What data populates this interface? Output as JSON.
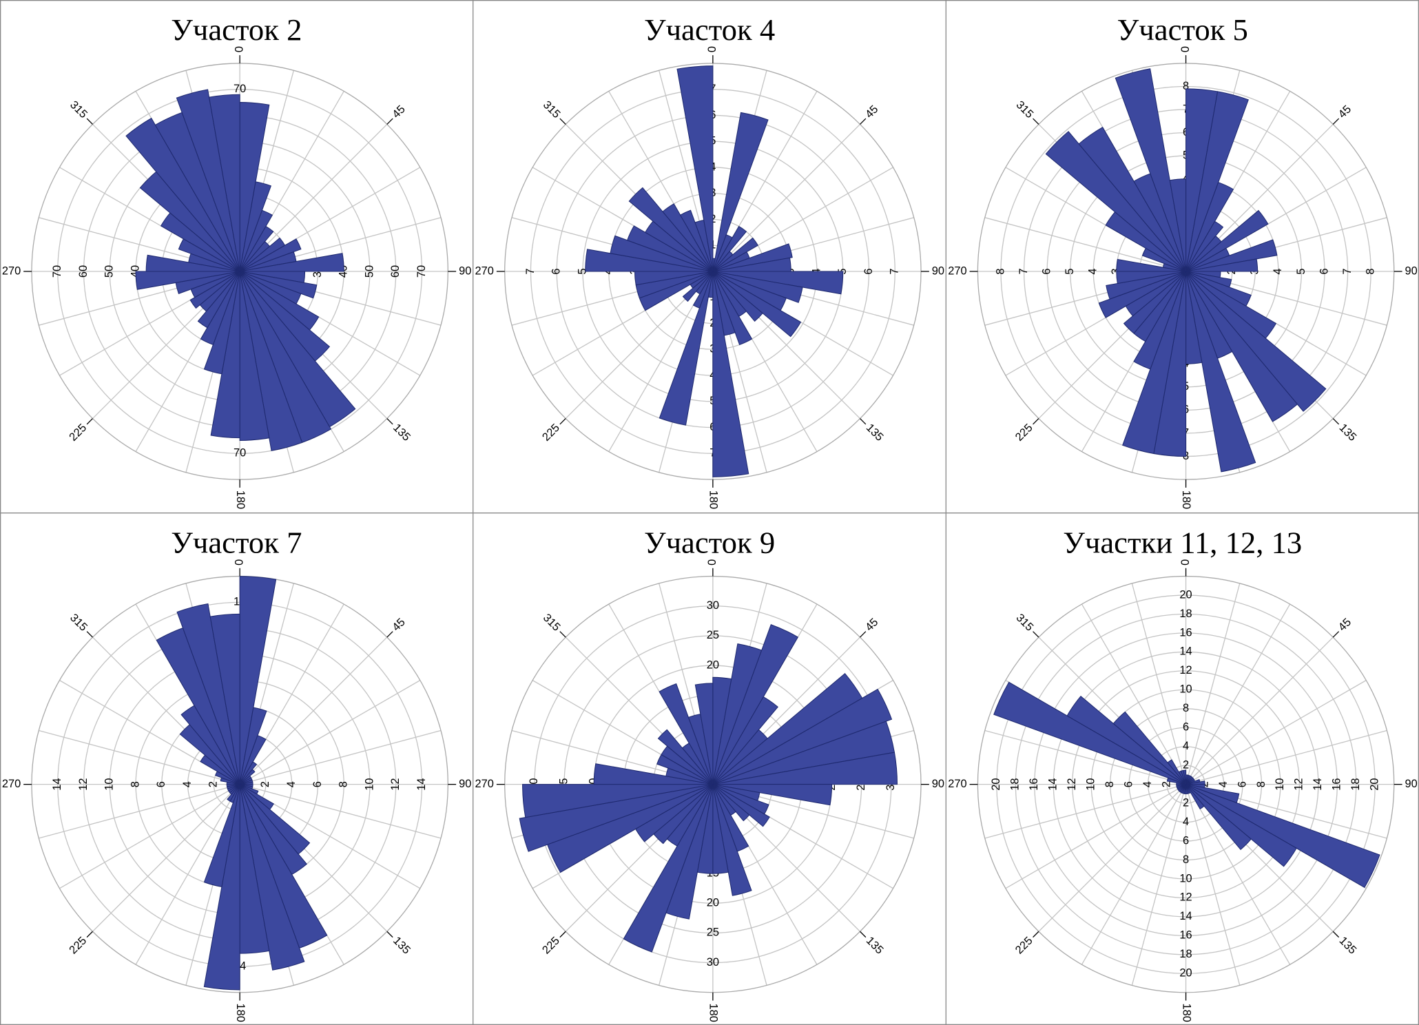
{
  "chart_data": [
    {
      "type": "rose",
      "title": "Участок 2",
      "color": "#3c489e",
      "values": [
        65,
        35,
        25,
        20,
        15,
        20,
        25,
        22,
        40,
        25,
        30,
        25,
        35,
        45,
        69,
        70,
        70,
        65,
        64,
        40,
        30,
        25,
        20,
        22,
        20,
        25,
        40,
        36,
        20,
        25,
        35,
        50,
        68,
        65,
        71,
        68
      ],
      "ylim": [
        0,
        80
      ],
      "yticks": [
        10,
        20,
        30,
        40,
        50,
        60,
        70
      ],
      "xticks": [
        0,
        45,
        90,
        135,
        180,
        225,
        270,
        315
      ]
    },
    {
      "type": "rose",
      "title": "Участок 4",
      "color": "#3c489e",
      "values": [
        0.5,
        6.2,
        1.5,
        2,
        1,
        2,
        1.5,
        3.1,
        3,
        5,
        3.5,
        3,
        3.9,
        2.5,
        2,
        3,
        2.5,
        7.9,
        1,
        6,
        1.5,
        1,
        1.5,
        1,
        3,
        3,
        3,
        4.9,
        4,
        3.5,
        3,
        4.2,
        3,
        2.5,
        2,
        7.9
      ],
      "ylim": [
        0,
        8
      ],
      "yticks": [
        1,
        2,
        3,
        4,
        5,
        6,
        7
      ],
      "xticks": [
        0,
        45,
        90,
        135,
        180,
        225,
        270,
        315
      ]
    },
    {
      "type": "rose",
      "title": "Участок 5",
      "color": "#3c489e",
      "values": [
        7.9,
        7.9,
        4.1,
        2.5,
        2,
        4.1,
        2,
        4,
        3.1,
        1.5,
        2,
        3,
        4.5,
        7.9,
        7.5,
        4,
        8.8,
        4,
        8,
        8,
        4.5,
        3.5,
        3.5,
        3,
        4,
        3.5,
        3,
        3,
        1,
        2,
        4,
        7.9,
        7.2,
        4.5,
        8.9,
        4
      ],
      "ylim": [
        0,
        9
      ],
      "yticks": [
        1,
        2,
        3,
        4,
        5,
        6,
        7,
        8
      ],
      "xticks": [
        0,
        45,
        90,
        135,
        180,
        225,
        270,
        315
      ]
    },
    {
      "type": "rose",
      "title": "Участок 7",
      "color": "#3c489e",
      "values": [
        16,
        6,
        4,
        2,
        1.5,
        1,
        1,
        1,
        1,
        1,
        1,
        1.5,
        3,
        7,
        8,
        13.4,
        14.5,
        13,
        15.8,
        8,
        1.5,
        1.5,
        1,
        1,
        1,
        1,
        1,
        1,
        1.5,
        2,
        3.5,
        6,
        7,
        12.8,
        14.1,
        13.1
      ],
      "ylim": [
        0,
        16
      ],
      "yticks": [
        2,
        4,
        6,
        8,
        10,
        12,
        14
      ],
      "xticks": [
        0,
        45,
        90,
        135,
        180,
        225,
        270,
        315
      ]
    },
    {
      "type": "rose",
      "title": "Участок 9",
      "color": "#3c489e",
      "values": [
        18,
        24,
        28.6,
        17,
        12,
        29,
        32,
        31,
        31,
        20,
        8,
        10,
        11,
        8,
        6,
        12,
        19,
        15,
        15,
        23,
        30,
        12,
        13,
        15,
        29.6,
        33,
        32,
        20,
        8,
        10,
        10,
        12,
        8,
        18,
        12,
        17
      ],
      "ylim": [
        0,
        35
      ],
      "yticks": [
        5,
        10,
        15,
        20,
        25,
        30
      ],
      "xticks": [
        0,
        45,
        90,
        135,
        180,
        225,
        270,
        315
      ]
    },
    {
      "type": "rose",
      "title": "Участки 11, 12, 13",
      "color": "#3c489e",
      "values": [
        1,
        1,
        1,
        1,
        1,
        1,
        1,
        1.5,
        2,
        2,
        5.7,
        21.8,
        13.5,
        9,
        3,
        1,
        1,
        1,
        1,
        1,
        1,
        1,
        1,
        1,
        1,
        1,
        1,
        1,
        2,
        21.6,
        14.5,
        10,
        3,
        1.5,
        1.5,
        1.5
      ],
      "ylim": [
        0,
        22
      ],
      "yticks": [
        2,
        4,
        6,
        8,
        10,
        12,
        14,
        16,
        18,
        20
      ],
      "xticks": [
        0,
        45,
        90,
        135,
        180,
        225,
        270,
        315
      ]
    }
  ]
}
